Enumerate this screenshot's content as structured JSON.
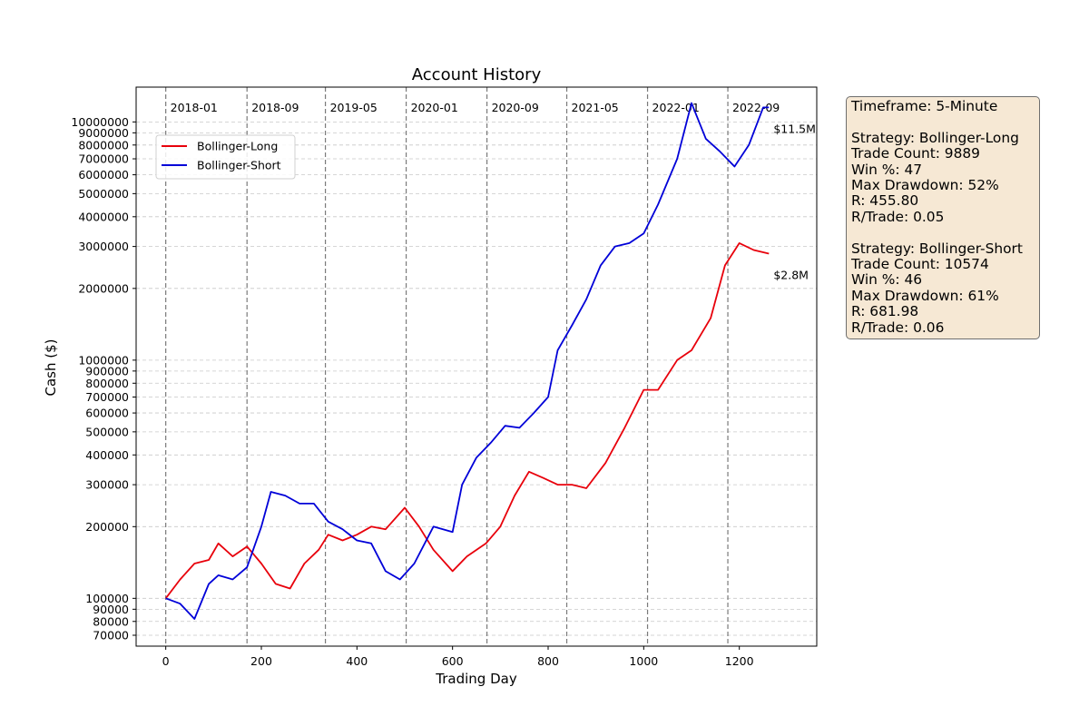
{
  "chart_data": {
    "type": "line",
    "title": "Account History",
    "xlabel": "Trading Day",
    "ylabel": "Cash ($)",
    "yscale": "log",
    "xlim": [
      -62,
      1362
    ],
    "ylim": [
      63000,
      14000000
    ],
    "x_ticks": [
      0,
      200,
      400,
      600,
      800,
      1000,
      1200
    ],
    "y_ticks": [
      70000,
      80000,
      90000,
      100000,
      200000,
      300000,
      400000,
      500000,
      600000,
      700000,
      800000,
      900000,
      1000000,
      2000000,
      3000000,
      4000000,
      5000000,
      6000000,
      7000000,
      8000000,
      9000000,
      10000000
    ],
    "grid": "horizontal dashed",
    "legend_position": "upper-left",
    "period_markers": [
      {
        "x": 0,
        "label": "2018-01"
      },
      {
        "x": 170,
        "label": "2018-09"
      },
      {
        "x": 334,
        "label": "2019-05"
      },
      {
        "x": 503,
        "label": "2020-01"
      },
      {
        "x": 672,
        "label": "2020-09"
      },
      {
        "x": 839,
        "label": "2021-05"
      },
      {
        "x": 1008,
        "label": "2022-01"
      },
      {
        "x": 1176,
        "label": "2022-09"
      }
    ],
    "series": [
      {
        "name": "Bollinger-Long",
        "color": "#e8000b",
        "end_label": "$2.8M",
        "x": [
          0,
          30,
          60,
          90,
          110,
          140,
          170,
          200,
          230,
          260,
          290,
          320,
          340,
          370,
          400,
          430,
          460,
          500,
          530,
          560,
          600,
          630,
          670,
          700,
          730,
          760,
          790,
          820,
          850,
          880,
          920,
          960,
          1000,
          1030,
          1070,
          1100,
          1140,
          1170,
          1200,
          1230,
          1262
        ],
        "y": [
          100000,
          120000,
          140000,
          145000,
          170000,
          150000,
          165000,
          140000,
          115000,
          110000,
          140000,
          160000,
          185000,
          175000,
          185000,
          200000,
          195000,
          240000,
          200000,
          160000,
          130000,
          150000,
          170000,
          200000,
          270000,
          340000,
          320000,
          300000,
          300000,
          290000,
          370000,
          520000,
          750000,
          750000,
          1000000,
          1100000,
          1500000,
          2500000,
          3100000,
          2900000,
          2800000
        ]
      },
      {
        "name": "Bollinger-Short",
        "color": "#0000d8",
        "end_label": "$11.5M",
        "x": [
          0,
          30,
          60,
          90,
          110,
          140,
          170,
          200,
          220,
          250,
          280,
          310,
          340,
          370,
          400,
          430,
          460,
          490,
          520,
          560,
          600,
          620,
          650,
          680,
          710,
          740,
          770,
          800,
          820,
          850,
          880,
          910,
          940,
          970,
          1000,
          1030,
          1070,
          1100,
          1130,
          1160,
          1190,
          1220,
          1250,
          1262
        ],
        "y": [
          100000,
          95000,
          82000,
          115000,
          125000,
          120000,
          135000,
          200000,
          280000,
          270000,
          250000,
          250000,
          210000,
          195000,
          175000,
          170000,
          130000,
          120000,
          140000,
          200000,
          190000,
          300000,
          390000,
          450000,
          530000,
          520000,
          600000,
          700000,
          1100000,
          1400000,
          1800000,
          2500000,
          3000000,
          3100000,
          3400000,
          4500000,
          7000000,
          12000000,
          8500000,
          7500000,
          6500000,
          8000000,
          11500000,
          11500000
        ]
      }
    ]
  },
  "stats_box": {
    "lines": [
      "Timeframe: 5-Minute",
      "",
      "Strategy: Bollinger-Long",
      "Trade Count: 9889",
      "Win %: 47",
      "Max Drawdown: 52%",
      "R: 455.80",
      "R/Trade: 0.05",
      "",
      "Strategy: Bollinger-Short",
      "Trade Count: 10574",
      "Win %: 46",
      "Max Drawdown: 61%",
      "R: 681.98",
      "R/Trade: 0.06"
    ]
  }
}
